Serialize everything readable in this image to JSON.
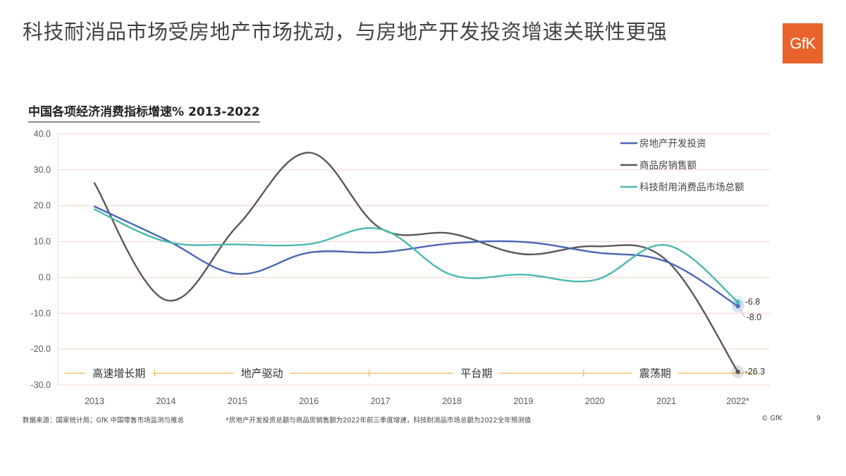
{
  "slide": {
    "title": "科技耐消品市场受房地产市场扰动，与房地产开发投资增速关联性更强",
    "logo_text": "GfK",
    "source": "数据来源：国家统计局；GfK 中国零售市场监测与推总",
    "note": "*房地产开发投资总额与商品房销售额为2022年前三季度增速，科技耐消品市场总额为2022全年预测值",
    "copyright": "© GfK",
    "page_number": "9"
  },
  "colors": {
    "series": [
      "#4a66b5",
      "#595959",
      "#4bb8b0"
    ],
    "grid": "#f3d3c6",
    "phase": "#f5b75f",
    "axis_text": "#595959"
  },
  "chart_data": {
    "type": "line",
    "title": "中国各项经济消费指标增速% 2013-2022",
    "x": [
      "2013",
      "2014",
      "2015",
      "2016",
      "2017",
      "2018",
      "2019",
      "2020",
      "2021",
      "2022*"
    ],
    "ylim": [
      -30,
      40
    ],
    "yticks": [
      "40.0",
      "30.0",
      "20.0",
      "10.0",
      "0.0",
      "-10.0",
      "-20.0",
      "-30.0"
    ],
    "grid": true,
    "legend_position": "top-right",
    "series": [
      {
        "name": "房地产开发投资",
        "values": [
          19.8,
          10.5,
          1.0,
          6.9,
          7.0,
          9.5,
          9.9,
          7.0,
          4.4,
          -8.0
        ]
      },
      {
        "name": "商品房销售额",
        "values": [
          26.3,
          -6.3,
          14.4,
          34.8,
          13.7,
          12.2,
          6.5,
          8.7,
          4.8,
          -26.3
        ]
      },
      {
        "name": "科技耐用消费品市场总额",
        "values": [
          19.0,
          10.0,
          9.2,
          9.3,
          13.5,
          0.7,
          0.8,
          -0.7,
          9.0,
          -6.8
        ]
      }
    ],
    "end_labels": [
      "-8.0",
      "-26.3",
      "-6.8"
    ],
    "phases": [
      {
        "label": "高速增长期",
        "start": 0,
        "end": 1
      },
      {
        "label": "地产驱动",
        "start": 1,
        "end": 4
      },
      {
        "label": "平台期",
        "start": 4,
        "end": 7
      },
      {
        "label": "震荡期",
        "start": 7,
        "end": 9
      }
    ],
    "phase_level": -26.7
  }
}
